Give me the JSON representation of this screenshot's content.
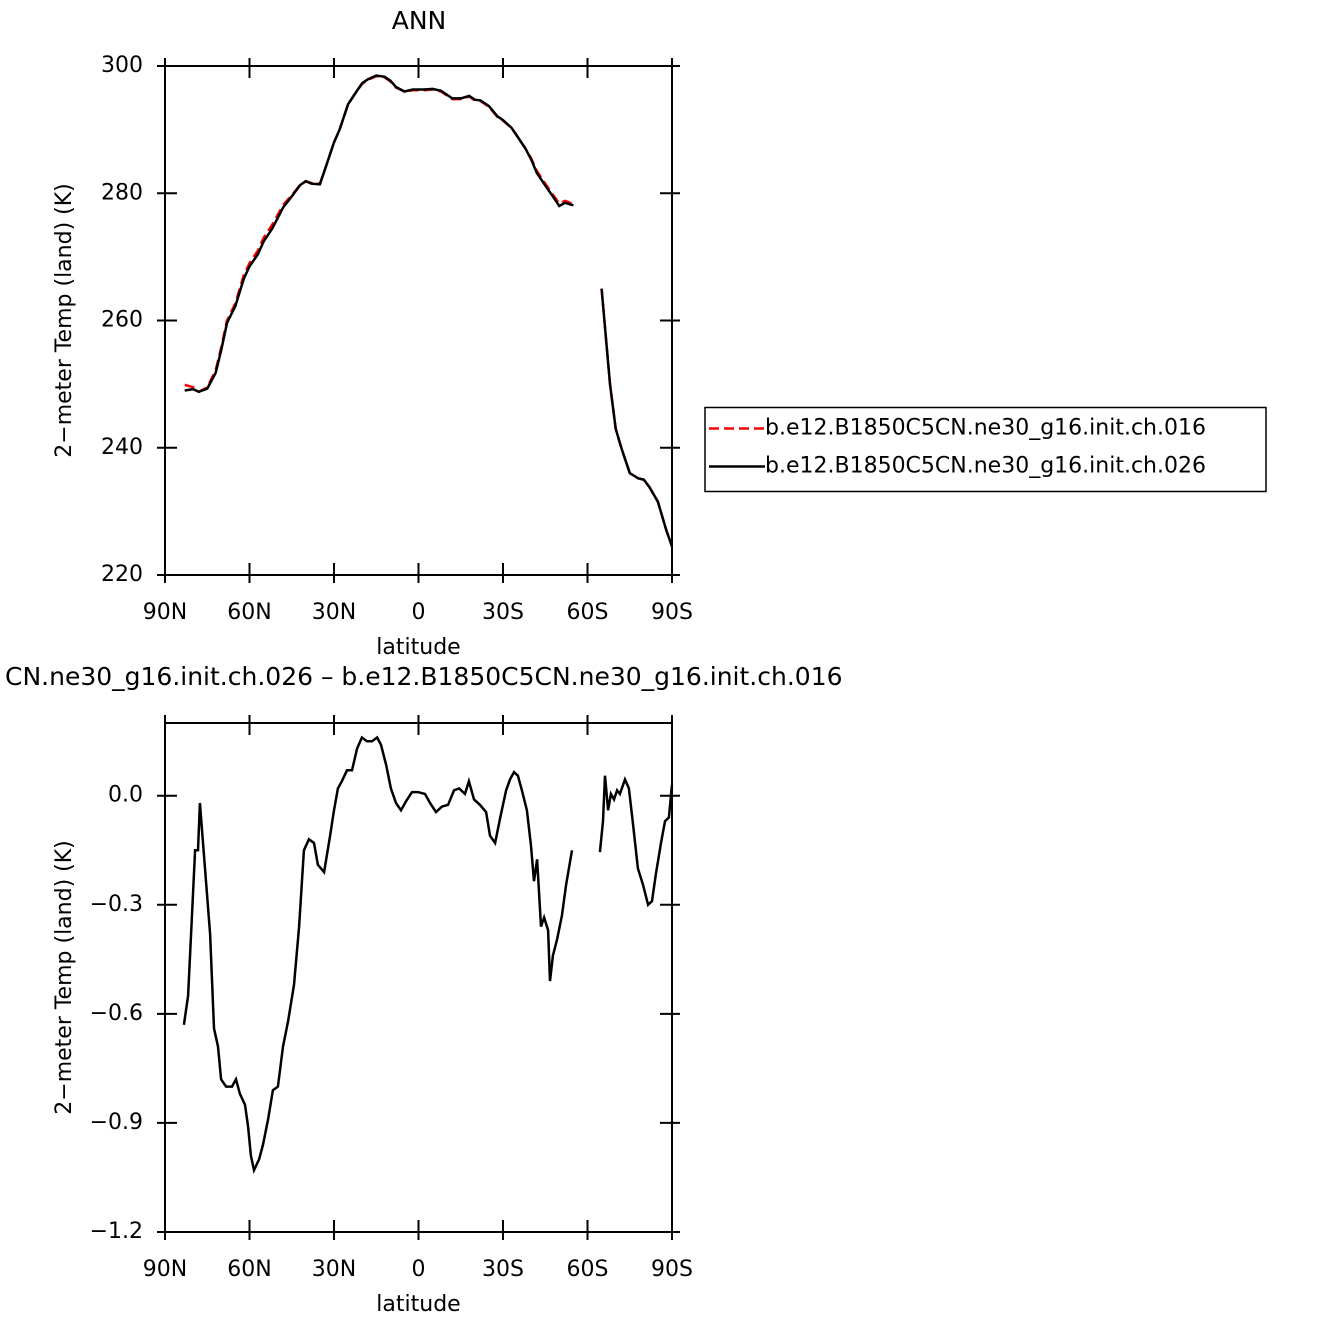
{
  "chart_data": [
    {
      "type": "line",
      "title": "ANN",
      "y_label": "2−meter Temp (land) (K)",
      "x_label": "latitude",
      "x": [
        83,
        80,
        78,
        75,
        72,
        70,
        68,
        65,
        62,
        60,
        57,
        55,
        52,
        50,
        48,
        45,
        42,
        40,
        38,
        35,
        33,
        30,
        28,
        25,
        22,
        20,
        18,
        15,
        12,
        10,
        8,
        5,
        2,
        0,
        -2,
        -5,
        -8,
        -10,
        -12,
        -15,
        -18,
        -20,
        -22,
        -25,
        -28,
        -30,
        -33,
        -35,
        -38,
        -40,
        -42,
        -45,
        -48,
        -50,
        -52,
        -55,
        -60,
        -65,
        -68,
        -70,
        -72,
        -75,
        -78,
        -80,
        -82,
        -85,
        -88,
        -90
      ],
      "xlim": [
        90,
        -90
      ],
      "xticks": [
        {
          "value": 90,
          "label": "90N"
        },
        {
          "value": 60,
          "label": "60N"
        },
        {
          "value": 30,
          "label": "30N"
        },
        0,
        {
          "value": -30,
          "label": "30S"
        },
        {
          "value": -60,
          "label": "60S"
        },
        {
          "value": -90,
          "label": "90S"
        }
      ],
      "ylim": [
        220,
        300
      ],
      "yticks": [
        220,
        240,
        260,
        280,
        300
      ],
      "legend_position": "right",
      "series": [
        {
          "name": "b.e12.B1850C5CN.ne30_g16.init.ch.016",
          "color": "#ff0000",
          "dashed": true,
          "values": [
            249.9,
            249.5,
            248.8,
            249.5,
            252.2,
            255.8,
            260,
            262.7,
            267.2,
            269,
            271,
            273,
            275,
            276.6,
            278.2,
            279.7,
            281.3,
            281.9,
            281.6,
            281.5,
            284,
            288,
            290,
            294,
            296,
            297.2,
            297.8,
            298.4,
            298.2,
            297.6,
            296.6,
            296,
            296.2,
            296.2,
            296.2,
            296.3,
            296,
            295.4,
            294.8,
            294.8,
            295.2,
            294.6,
            294.5,
            293.6,
            292,
            291.4,
            290.3,
            289,
            287,
            285.5,
            283.5,
            281.5,
            279.6,
            278.4,
            278.8,
            278.3,
            null,
            265,
            250,
            243,
            240,
            236,
            235.2,
            235,
            233.8,
            231.5,
            227,
            224.5
          ]
        },
        {
          "name": "b.e12.B1850C5CN.ne30_g16.init.ch.026",
          "color": "#000000",
          "dashed": false,
          "values": [
            249,
            249.2,
            248.8,
            249.3,
            251.8,
            255.4,
            259.6,
            262.3,
            266.6,
            268.5,
            270.4,
            272.4,
            274.4,
            276.1,
            277.8,
            279.5,
            281.3,
            281.9,
            281.5,
            281.4,
            284,
            288,
            290,
            294,
            296,
            297.3,
            297.9,
            298.5,
            298.3,
            297.7,
            296.7,
            296,
            296.3,
            296.3,
            296.3,
            296.4,
            296.1,
            295.5,
            294.9,
            294.9,
            295.3,
            294.7,
            294.6,
            293.7,
            292.1,
            291.5,
            290.3,
            289,
            287,
            285.3,
            283.2,
            281.2,
            279.3,
            278,
            278.5,
            278.1,
            null,
            265,
            250,
            243,
            240,
            236,
            235.2,
            235,
            233.8,
            231.5,
            227,
            224.5
          ]
        }
      ]
    },
    {
      "type": "line",
      "title": "CN.ne30_g16.init.ch.026 – b.e12.B1850C5CN.ne30_g16.init.ch.016",
      "y_label": "2−meter Temp (land) (K)",
      "x_label": "latitude",
      "x": [
        83.3,
        81.8,
        79.3,
        78.3,
        77.6,
        75.8,
        74.0,
        72.6,
        71.2,
        70.1,
        68.3,
        66.2,
        64.8,
        63.4,
        61.6,
        60.5,
        59.5,
        58.4,
        56.6,
        55.2,
        53.4,
        51.7,
        49.9,
        48.1,
        46.3,
        44.2,
        42.4,
        40.7,
        38.9,
        37.1,
        35.7,
        33.5,
        31.4,
        30.0,
        28.6,
        27.2,
        25.4,
        23.6,
        21.8,
        20.1,
        18.3,
        16.5,
        14.7,
        13.3,
        11.5,
        9.8,
        8.0,
        6.2,
        4.4,
        2.3,
        0.2,
        -2.3,
        -4.1,
        -6.2,
        -8.3,
        -10.5,
        -12.6,
        -14.4,
        -16.5,
        -17.9,
        -19.7,
        -21.8,
        -24.0,
        -25.4,
        -27.2,
        -28.9,
        -31.1,
        -32.5,
        -33.9,
        -35.3,
        -36.7,
        -38.5,
        -39.9,
        -41.0,
        -42.1,
        -43.5,
        -44.6,
        -46.0,
        -46.7,
        -47.7,
        -49.2,
        -50.9,
        -52.4,
        -54.5,
        -60,
        -64.4,
        -65.5,
        -66.2,
        -67.3,
        -68.3,
        -69.4,
        -70.5,
        -71.5,
        -73.3,
        -74.7,
        -76.2,
        -77.9,
        -79.7,
        -81.5,
        -82.9,
        -84.3,
        -86.1,
        -87.5,
        -88.9,
        -90.0
      ],
      "xlim": [
        90,
        -90
      ],
      "xticks": [
        {
          "value": 90,
          "label": "90N"
        },
        {
          "value": 60,
          "label": "60N"
        },
        {
          "value": 30,
          "label": "30N"
        },
        0,
        {
          "value": -30,
          "label": "30S"
        },
        {
          "value": -60,
          "label": "60S"
        },
        {
          "value": -90,
          "label": "90S"
        }
      ],
      "ylim": [
        -1.2,
        0.2
      ],
      "yticks": [
        {
          "value": -1.2,
          "label": "−1.2"
        },
        {
          "value": -0.9,
          "label": "−0.9"
        },
        {
          "value": -0.6,
          "label": "−0.6"
        },
        {
          "value": -0.3,
          "label": "−0.3"
        },
        {
          "value": 0,
          "label": "0.0"
        }
      ],
      "series": [
        {
          "color": "#000000",
          "dashed": false,
          "values": [
            -0.63,
            -0.55,
            -0.15,
            -0.15,
            -0.02,
            -0.2,
            -0.38,
            -0.64,
            -0.69,
            -0.78,
            -0.8,
            -0.8,
            -0.78,
            -0.82,
            -0.85,
            -0.91,
            -0.99,
            -1.03,
            -1.0,
            -0.96,
            -0.89,
            -0.81,
            -0.8,
            -0.69,
            -0.62,
            -0.52,
            -0.36,
            -0.15,
            -0.12,
            -0.13,
            -0.19,
            -0.21,
            -0.11,
            -0.04,
            0.02,
            0.04,
            0.07,
            0.07,
            0.13,
            0.16,
            0.15,
            0.15,
            0.16,
            0.14,
            0.085,
            0.02,
            -0.02,
            -0.04,
            -0.015,
            0.01,
            0.01,
            0.005,
            -0.02,
            -0.045,
            -0.03,
            -0.025,
            0.015,
            0.02,
            0.005,
            0.04,
            -0.01,
            -0.025,
            -0.045,
            -0.11,
            -0.13,
            -0.065,
            0.015,
            0.045,
            0.065,
            0.055,
            0.015,
            -0.04,
            -0.135,
            -0.235,
            -0.175,
            -0.36,
            -0.335,
            -0.37,
            -0.51,
            -0.44,
            -0.395,
            -0.33,
            -0.245,
            -0.15,
            null,
            -0.155,
            -0.07,
            0.055,
            -0.04,
            0.005,
            -0.01,
            0.015,
            0.005,
            0.045,
            0.02,
            -0.08,
            -0.2,
            -0.245,
            -0.3,
            -0.29,
            -0.215,
            -0.13,
            -0.07,
            -0.06,
            0.03
          ]
        }
      ]
    }
  ]
}
